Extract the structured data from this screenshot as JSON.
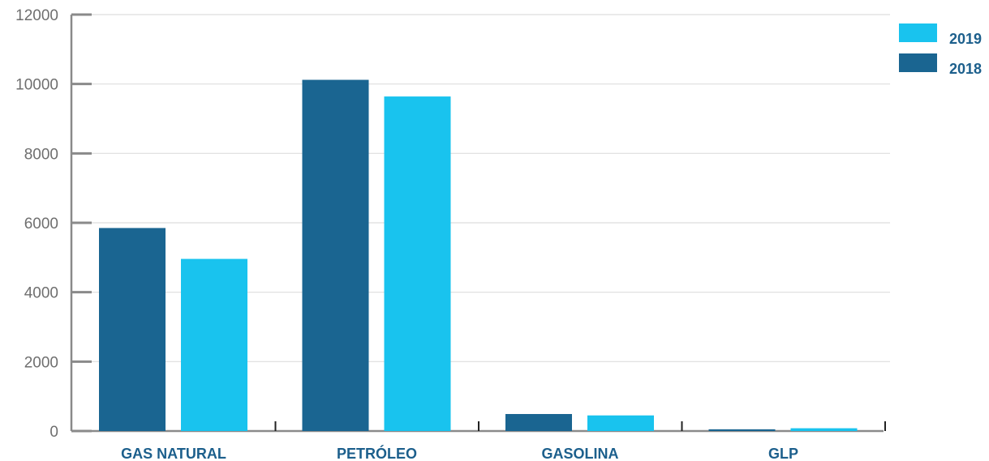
{
  "chart_data": {
    "type": "bar",
    "title": "",
    "xlabel": "",
    "ylabel": "",
    "categories": [
      "GAS NATURAL",
      "PETRÓLEO",
      "GASOLINA",
      "GLP"
    ],
    "series": [
      {
        "name": "2018",
        "color": "#1a6591",
        "values": [
          5850,
          10120,
          490,
          50
        ]
      },
      {
        "name": "2019",
        "color": "#19c3ee",
        "values": [
          4960,
          9640,
          450,
          80
        ]
      }
    ],
    "ylim": [
      0,
      12000
    ],
    "yticks": [
      0,
      2000,
      4000,
      6000,
      8000,
      10000,
      12000
    ],
    "ytick_labels": [
      "0",
      "2000",
      "4000",
      "6000",
      "8000",
      "10000",
      "12000"
    ],
    "legend": {
      "position": "top-right",
      "order": [
        "2019",
        "2018"
      ]
    },
    "grid": true,
    "colors": {
      "grid": "#dedede",
      "axis": "#8a8a8a",
      "label": "#1c5f8c",
      "tick_text": "#6f6f6f"
    }
  }
}
